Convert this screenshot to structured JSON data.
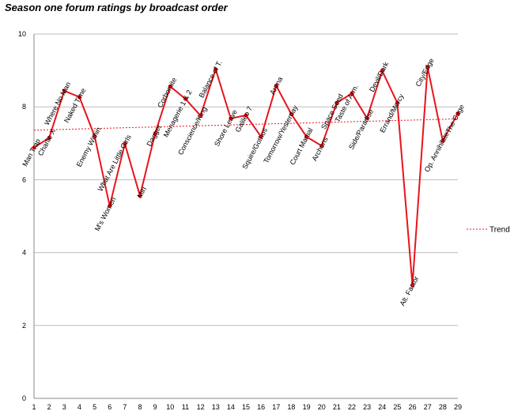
{
  "chart_data": {
    "type": "line",
    "title": "Season one forum ratings by broadcast order",
    "xlabel": "",
    "ylabel": "",
    "x": [
      1,
      2,
      3,
      4,
      5,
      6,
      7,
      8,
      9,
      10,
      11,
      12,
      13,
      14,
      15,
      16,
      17,
      18,
      19,
      20,
      21,
      22,
      23,
      24,
      25,
      26,
      27,
      28,
      29
    ],
    "xlim": [
      1,
      29
    ],
    "ylim": [
      0,
      10
    ],
    "yticks": [
      0,
      2,
      4,
      6,
      8,
      10
    ],
    "grid": "horizontal",
    "series": [
      {
        "color": "#e8141b",
        "values": [
          6.88,
          7.15,
          8.44,
          8.27,
          7.2,
          5.28,
          6.99,
          5.56,
          7.27,
          8.56,
          8.22,
          7.76,
          9.03,
          7.68,
          7.77,
          7.18,
          8.58,
          7.8,
          7.18,
          6.93,
          8.11,
          8.37,
          7.69,
          8.99,
          8.11,
          3.11,
          9.09,
          7.07,
          7.82
        ],
        "labels": [
          "Man Trap",
          "Charlie X",
          "Where No Man",
          "Naked Time",
          "Enemy Within",
          "M's Women",
          "What Are Little Girls",
          "Miri",
          "Dagger",
          "Corbomite",
          "Menagerie 1 & 2",
          "Conscience/King",
          "Balance of T.",
          "Shore Leave",
          "Galileo 7",
          "Squire/Gothos",
          "Arena",
          "Tomorrow/Yesterday",
          "Court Martial",
          "Archons",
          "Space Seed",
          "Taste of Arm.",
          "Side/Paradise",
          "Devil/Dark",
          "Errand/Mercy",
          "Alt. Factor",
          "City/Edge",
          "Op. Annihilate",
          "The Cage"
        ]
      }
    ],
    "trend": {
      "name": "Trend",
      "color": "#e8141b",
      "start": 7.36,
      "end": 7.67
    },
    "legend": "right"
  }
}
